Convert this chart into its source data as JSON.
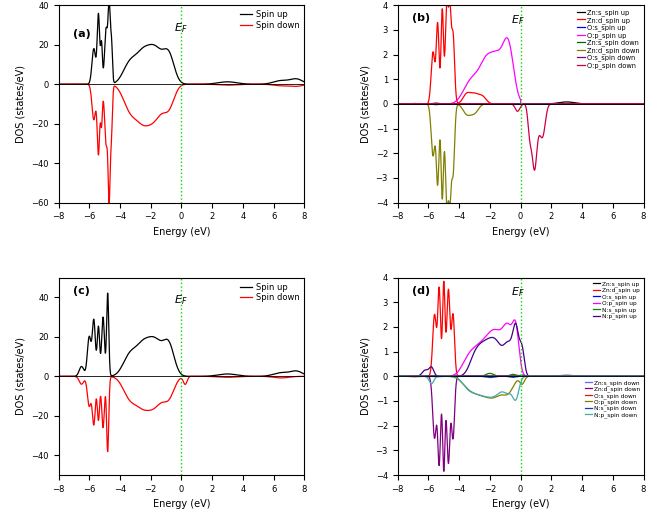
{
  "xlim": [
    -8,
    8
  ],
  "ef_color": "#00dd00",
  "panel_a": {
    "ylim": [
      -60,
      40
    ],
    "yticks": [
      -60,
      -40,
      -20,
      0,
      20,
      40
    ],
    "ylabel": "DOS (states/eV)",
    "xlabel": "Energy (eV)",
    "spin_up_color": "black",
    "spin_down_color": "red",
    "legend_labels": [
      "Spin up",
      "Spin down"
    ]
  },
  "panel_b": {
    "ylim": [
      -4,
      4
    ],
    "yticks": [
      -4,
      -3,
      -2,
      -1,
      0,
      1,
      2,
      3,
      4
    ],
    "ylabel": "DOS (states/eV)",
    "xlabel": "Energy (eV)",
    "colors": [
      "black",
      "red",
      "blue",
      "magenta",
      "#006600",
      "#808000",
      "purple",
      "#cc0044"
    ],
    "legend_labels": [
      "Zn:s_spin up",
      "Zn:d_spin up",
      "O:s_spin up",
      "O:p_spin up",
      "Zn:s_spin down",
      "Zn:d_spin down",
      "O:s_spin down",
      "O:p_spin down"
    ]
  },
  "panel_c": {
    "ylim": [
      -50,
      50
    ],
    "yticks": [
      -40,
      -20,
      0,
      20,
      40
    ],
    "ylabel": "DOS (states/eV)",
    "xlabel": "Energy (eV)",
    "spin_up_color": "black",
    "spin_down_color": "red",
    "legend_labels": [
      "Spin up",
      "Spin down"
    ]
  },
  "panel_d": {
    "ylim": [
      -4,
      4
    ],
    "yticks": [
      -4,
      -3,
      -2,
      -1,
      0,
      1,
      2,
      3,
      4
    ],
    "ylabel": "DOS (states/eV)",
    "xlabel": "Energy (eV)",
    "colors_up": [
      "black",
      "red",
      "blue",
      "magenta",
      "#008800",
      "#440088"
    ],
    "colors_down": [
      "#6666ff",
      "purple",
      "#cc2200",
      "#808000",
      "#0044cc",
      "#44aaaa"
    ],
    "legend_labels_up": [
      "Zn:s_spin up",
      "Zn:d_spin up",
      "O:s_spin up",
      "O:p_spin up",
      "N:s_spin up",
      "N:p_spin up"
    ],
    "legend_labels_down": [
      "Zn:s_spin down",
      "Zn:d_spin down",
      "O:s_spin down",
      "O:p_spin down",
      "N:s_spin down",
      "N:p_spin down"
    ]
  }
}
